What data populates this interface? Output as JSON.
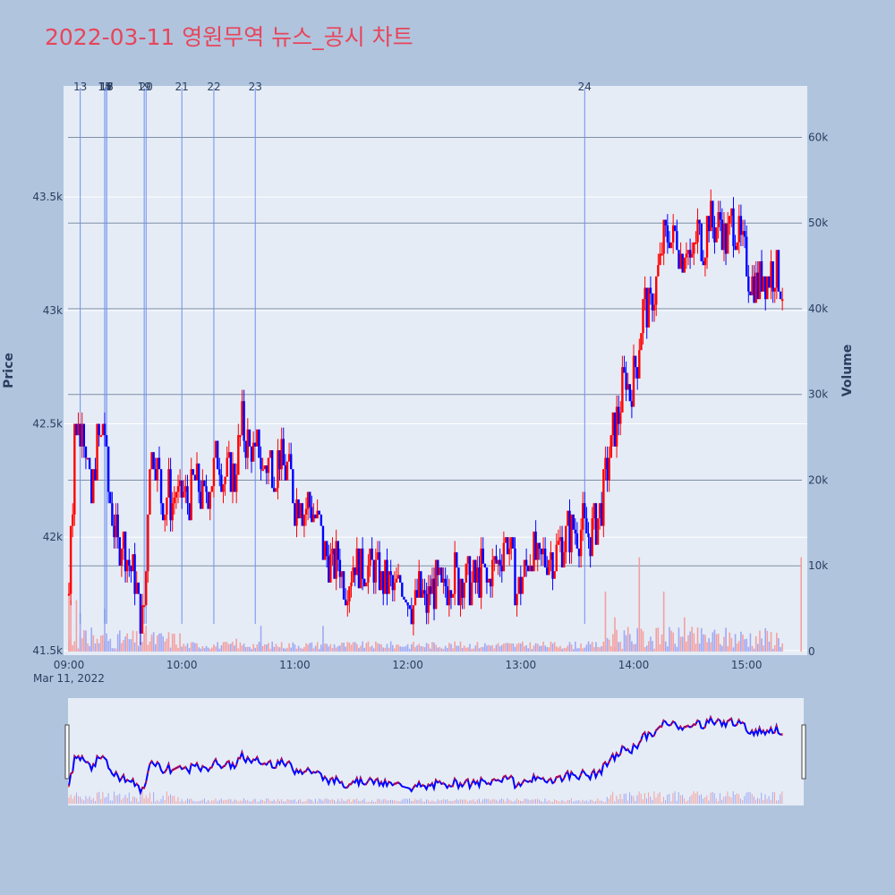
{
  "chart_data": {
    "type": "candlestick",
    "title": "2022-03-11 영원무역 뉴스_공시 차트",
    "date_label": "Mar 11, 2022",
    "y_left_title": "Price",
    "y_right_title": "Volume",
    "price_ticks": [
      {
        "value": 41500,
        "label": "41.5k"
      },
      {
        "value": 42000,
        "label": "42k"
      },
      {
        "value": 42500,
        "label": "42.5k"
      },
      {
        "value": 43000,
        "label": "43k"
      },
      {
        "value": 43500,
        "label": "43.5k"
      }
    ],
    "volume_ticks": [
      {
        "value": 0,
        "label": "0"
      },
      {
        "value": 10000,
        "label": "10k"
      },
      {
        "value": 20000,
        "label": "20k"
      },
      {
        "value": 30000,
        "label": "30k"
      },
      {
        "value": 40000,
        "label": "40k"
      },
      {
        "value": 50000,
        "label": "50k"
      },
      {
        "value": 60000,
        "label": "60k"
      }
    ],
    "x_ticks": [
      "09:00",
      "10:00",
      "11:00",
      "12:00",
      "13:00",
      "14:00",
      "15:00"
    ],
    "price_range": [
      41480,
      43990
    ],
    "volume_range": [
      0,
      66000
    ],
    "colors": {
      "up": "#ff0000",
      "down": "#0000ff",
      "news_line": "#6f8fef"
    },
    "news_markers": [
      {
        "label": "13",
        "time": "09:06"
      },
      {
        "label": "14",
        "time": "09:19"
      },
      {
        "label": "15",
        "time": "09:19"
      },
      {
        "label": "16",
        "time": "09:20"
      },
      {
        "label": "17",
        "time": "09:20"
      },
      {
        "label": "18",
        "time": "09:20"
      },
      {
        "label": "19",
        "time": "09:40"
      },
      {
        "label": "20",
        "time": "09:41"
      },
      {
        "label": "21",
        "time": "10:00"
      },
      {
        "label": "22",
        "time": "10:17"
      },
      {
        "label": "23",
        "time": "10:39"
      },
      {
        "label": "24",
        "time": "13:34"
      }
    ],
    "price_path": [
      [
        "09:00",
        41750
      ],
      [
        "09:01",
        42100
      ],
      [
        "09:02",
        42200
      ],
      [
        "09:03",
        42500
      ],
      [
        "09:04",
        42400
      ],
      [
        "09:05",
        42550
      ],
      [
        "09:06",
        42400
      ],
      [
        "09:07",
        42600
      ],
      [
        "09:08",
        42500
      ],
      [
        "09:09",
        42400
      ],
      [
        "09:10",
        42300
      ],
      [
        "09:11",
        42200
      ],
      [
        "09:12",
        42150
      ],
      [
        "09:13",
        42250
      ],
      [
        "09:14",
        42350
      ],
      [
        "09:15",
        42400
      ],
      [
        "09:16",
        42450
      ],
      [
        "09:17",
        42400
      ],
      [
        "09:18",
        42500
      ],
      [
        "09:19",
        42450
      ],
      [
        "09:20",
        42300
      ],
      [
        "09:21",
        42200
      ],
      [
        "09:22",
        42150
      ],
      [
        "09:23",
        42100
      ],
      [
        "09:24",
        42050
      ],
      [
        "09:25",
        42000
      ],
      [
        "09:26",
        41950
      ],
      [
        "09:28",
        42000
      ],
      [
        "09:30",
        41950
      ],
      [
        "09:31",
        41900
      ],
      [
        "09:33",
        41850
      ],
      [
        "09:35",
        41800
      ],
      [
        "09:37",
        41700
      ],
      [
        "09:39",
        41650
      ],
      [
        "09:40",
        41700
      ],
      [
        "09:41",
        41850
      ],
      [
        "09:42",
        42150
      ],
      [
        "09:43",
        42350
      ],
      [
        "09:45",
        42400
      ],
      [
        "09:47",
        42300
      ],
      [
        "09:49",
        42200
      ],
      [
        "09:51",
        42150
      ],
      [
        "09:53",
        42200
      ],
      [
        "09:55",
        42150
      ],
      [
        "09:57",
        42200
      ],
      [
        "09:59",
        42150
      ],
      [
        "10:01",
        42200
      ],
      [
        "10:03",
        42150
      ],
      [
        "10:05",
        42200
      ],
      [
        "10:07",
        42250
      ],
      [
        "10:09",
        42200
      ],
      [
        "10:11",
        42150
      ],
      [
        "10:13",
        42200
      ],
      [
        "10:15",
        42250
      ],
      [
        "10:17",
        42300
      ],
      [
        "10:19",
        42350
      ],
      [
        "10:21",
        42300
      ],
      [
        "10:24",
        42250
      ],
      [
        "10:26",
        42300
      ],
      [
        "10:28",
        42250
      ],
      [
        "10:30",
        42400
      ],
      [
        "10:32",
        42500
      ],
      [
        "10:34",
        42450
      ],
      [
        "10:36",
        42400
      ],
      [
        "10:39",
        42350
      ],
      [
        "10:41",
        42400
      ],
      [
        "10:43",
        42300
      ],
      [
        "10:46",
        42350
      ],
      [
        "10:49",
        42300
      ],
      [
        "10:52",
        42350
      ],
      [
        "10:55",
        42300
      ],
      [
        "10:58",
        42250
      ],
      [
        "11:00",
        42150
      ],
      [
        "11:03",
        42200
      ],
      [
        "11:05",
        42100
      ],
      [
        "11:07",
        42150
      ],
      [
        "11:10",
        42100
      ],
      [
        "11:13",
        42050
      ],
      [
        "11:15",
        41950
      ],
      [
        "11:18",
        41900
      ],
      [
        "11:20",
        41850
      ],
      [
        "11:23",
        41900
      ],
      [
        "11:25",
        41850
      ],
      [
        "11:27",
        41800
      ],
      [
        "11:30",
        41850
      ],
      [
        "11:33",
        41900
      ],
      [
        "11:35",
        41850
      ],
      [
        "11:38",
        41900
      ],
      [
        "11:40",
        41850
      ],
      [
        "11:43",
        41850
      ],
      [
        "11:46",
        41800
      ],
      [
        "11:50",
        41800
      ],
      [
        "11:53",
        41750
      ],
      [
        "11:56",
        41800
      ],
      [
        "12:00",
        41750
      ],
      [
        "12:03",
        41700
      ],
      [
        "12:06",
        41750
      ],
      [
        "12:09",
        41700
      ],
      [
        "12:12",
        41750
      ],
      [
        "12:15",
        41800
      ],
      [
        "12:18",
        41750
      ],
      [
        "12:21",
        41800
      ],
      [
        "12:24",
        41850
      ],
      [
        "12:27",
        41800
      ],
      [
        "12:30",
        41850
      ],
      [
        "12:33",
        41800
      ],
      [
        "12:36",
        41800
      ],
      [
        "12:39",
        41850
      ],
      [
        "12:42",
        41800
      ],
      [
        "12:45",
        41850
      ],
      [
        "12:48",
        41900
      ],
      [
        "12:50",
        41950
      ],
      [
        "12:52",
        42000
      ],
      [
        "12:54",
        41950
      ],
      [
        "12:56",
        41850
      ],
      [
        "12:58",
        41750
      ],
      [
        "13:00",
        41800
      ],
      [
        "13:02",
        41850
      ],
      [
        "13:04",
        41900
      ],
      [
        "13:06",
        41950
      ],
      [
        "13:08",
        41900
      ],
      [
        "13:10",
        41850
      ],
      [
        "13:12",
        41900
      ],
      [
        "13:15",
        41950
      ],
      [
        "13:18",
        41900
      ],
      [
        "13:21",
        41950
      ],
      [
        "13:24",
        42000
      ],
      [
        "13:27",
        42050
      ],
      [
        "13:30",
        42000
      ],
      [
        "13:33",
        42050
      ],
      [
        "13:36",
        42000
      ],
      [
        "13:39",
        42050
      ],
      [
        "13:42",
        42100
      ],
      [
        "13:44",
        42200
      ],
      [
        "13:46",
        42300
      ],
      [
        "13:48",
        42400
      ],
      [
        "13:50",
        42500
      ],
      [
        "13:52",
        42550
      ],
      [
        "13:54",
        42650
      ],
      [
        "13:56",
        42700
      ],
      [
        "13:58",
        42650
      ],
      [
        "14:00",
        42700
      ],
      [
        "14:02",
        42800
      ],
      [
        "14:04",
        42950
      ],
      [
        "14:06",
        43050
      ],
      [
        "14:08",
        43000
      ],
      [
        "14:10",
        43050
      ],
      [
        "14:12",
        43100
      ],
      [
        "14:14",
        43200
      ],
      [
        "14:16",
        43300
      ],
      [
        "14:18",
        43350
      ],
      [
        "14:20",
        43300
      ],
      [
        "14:22",
        43350
      ],
      [
        "14:25",
        43250
      ],
      [
        "14:28",
        43300
      ],
      [
        "14:31",
        43200
      ],
      [
        "14:34",
        43350
      ],
      [
        "14:37",
        43300
      ],
      [
        "14:40",
        43400
      ],
      [
        "14:43",
        43350
      ],
      [
        "14:46",
        43400
      ],
      [
        "14:49",
        43300
      ],
      [
        "14:52",
        43400
      ],
      [
        "14:55",
        43350
      ],
      [
        "14:58",
        43250
      ],
      [
        "15:00",
        43200
      ],
      [
        "15:03",
        43150
      ],
      [
        "15:06",
        43100
      ],
      [
        "15:09",
        43150
      ],
      [
        "15:12",
        43150
      ],
      [
        "15:15",
        43200
      ],
      [
        "15:18",
        43100
      ],
      [
        "15:19",
        43100
      ]
    ],
    "volume_bars": [
      {
        "time": "09:00",
        "volume": 8000,
        "dir": "up"
      },
      {
        "time": "09:01",
        "volume": 6000,
        "dir": "up"
      },
      {
        "time": "09:04",
        "volume": 6000,
        "dir": "up"
      },
      {
        "time": "09:06",
        "volume": 4500,
        "dir": "down"
      },
      {
        "time": "09:08",
        "volume": 2500,
        "dir": "up"
      },
      {
        "time": "09:12",
        "volume": 2800,
        "dir": "down"
      },
      {
        "time": "09:19",
        "volume": 5000,
        "dir": "down"
      },
      {
        "time": "09:27",
        "volume": 1500,
        "dir": "down"
      },
      {
        "time": "09:41",
        "volume": 3000,
        "dir": "up"
      },
      {
        "time": "09:44",
        "volume": 2000,
        "dir": "up"
      },
      {
        "time": "10:29",
        "volume": 1500,
        "dir": "up"
      },
      {
        "time": "10:42",
        "volume": 3000,
        "dir": "down"
      },
      {
        "time": "11:15",
        "volume": 3000,
        "dir": "down"
      },
      {
        "time": "13:45",
        "volume": 7000,
        "dir": "up"
      },
      {
        "time": "13:50",
        "volume": 4000,
        "dir": "up"
      },
      {
        "time": "14:03",
        "volume": 11000,
        "dir": "up"
      },
      {
        "time": "14:16",
        "volume": 7000,
        "dir": "up"
      },
      {
        "time": "14:27",
        "volume": 4000,
        "dir": "up"
      },
      {
        "time": "15:29",
        "volume": 11000,
        "dir": "up"
      }
    ]
  }
}
